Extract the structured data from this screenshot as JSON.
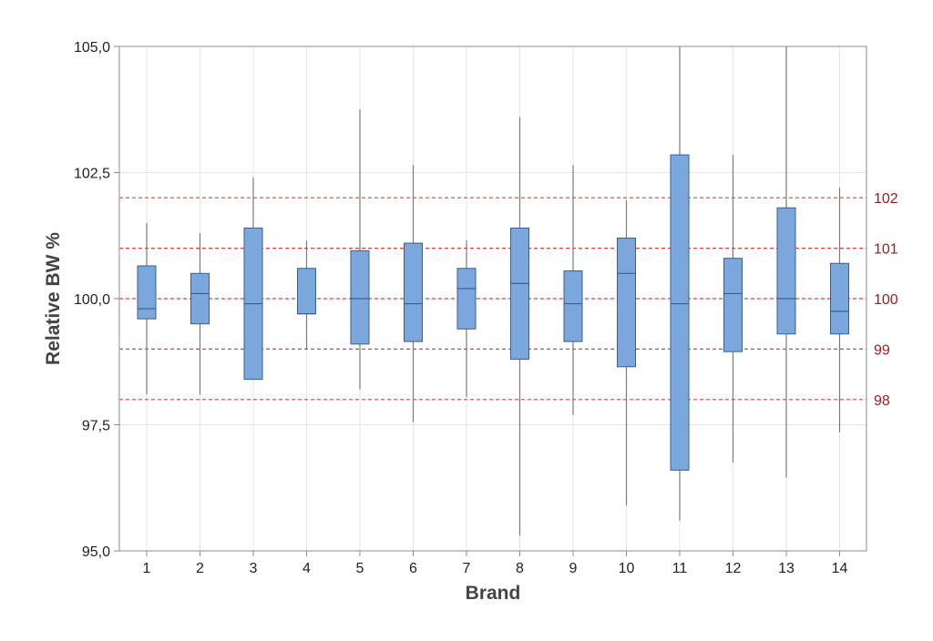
{
  "chart_data": {
    "type": "box",
    "xlabel": "Brand",
    "ylabel": "Relative BW %",
    "ylim": [
      95.0,
      105.0
    ],
    "y_ticks": [
      "95,0",
      "97,5",
      "100,0",
      "102,5",
      "105,0"
    ],
    "y_tick_values": [
      95.0,
      97.5,
      100.0,
      102.5,
      105.0
    ],
    "categories": [
      "1",
      "2",
      "3",
      "4",
      "5",
      "6",
      "7",
      "8",
      "9",
      "10",
      "11",
      "12",
      "13",
      "14"
    ],
    "boxes": [
      {
        "brand": "1",
        "min": 98.1,
        "q1": 99.6,
        "median": 99.8,
        "q3": 100.65,
        "max": 101.5
      },
      {
        "brand": "2",
        "min": 98.1,
        "q1": 99.5,
        "median": 100.1,
        "q3": 100.5,
        "max": 101.3
      },
      {
        "brand": "3",
        "min": 98.4,
        "q1": 98.4,
        "median": 99.9,
        "q3": 101.4,
        "max": 102.4
      },
      {
        "brand": "4",
        "min": 99.0,
        "q1": 99.7,
        "median": 99.7,
        "q3": 100.6,
        "max": 101.15
      },
      {
        "brand": "5",
        "min": 98.2,
        "q1": 99.1,
        "median": 100.0,
        "q3": 100.95,
        "max": 103.75
      },
      {
        "brand": "6",
        "min": 97.55,
        "q1": 99.15,
        "median": 99.9,
        "q3": 101.1,
        "max": 102.65
      },
      {
        "brand": "7",
        "min": 98.05,
        "q1": 99.4,
        "median": 100.2,
        "q3": 100.6,
        "max": 101.15
      },
      {
        "brand": "8",
        "min": 95.3,
        "q1": 98.8,
        "median": 100.3,
        "q3": 101.4,
        "max": 103.6
      },
      {
        "brand": "9",
        "min": 97.7,
        "q1": 99.15,
        "median": 99.9,
        "q3": 100.55,
        "max": 102.65
      },
      {
        "brand": "10",
        "min": 95.9,
        "q1": 98.65,
        "median": 100.5,
        "q3": 101.2,
        "max": 101.95
      },
      {
        "brand": "11",
        "min": 95.6,
        "q1": 96.6,
        "median": 99.9,
        "q3": 102.85,
        "max": 105.0
      },
      {
        "brand": "12",
        "min": 96.75,
        "q1": 98.95,
        "median": 100.1,
        "q3": 100.8,
        "max": 102.85
      },
      {
        "brand": "13",
        "min": 96.45,
        "q1": 99.3,
        "median": 100.0,
        "q3": 101.8,
        "max": 105.0
      },
      {
        "brand": "14",
        "min": 97.35,
        "q1": 99.3,
        "median": 99.75,
        "q3": 100.7,
        "max": 102.2
      }
    ],
    "reference_lines": [
      {
        "value": 102,
        "label": "102"
      },
      {
        "value": 101,
        "label": "101"
      },
      {
        "value": 100,
        "label": "100"
      },
      {
        "value": 99,
        "label": "99"
      },
      {
        "value": 98,
        "label": "98"
      }
    ],
    "grid": true,
    "colors": {
      "box_fill": "#7ba7dc",
      "box_stroke": "#3a5f8f",
      "whisker": "#7a7a7a",
      "reference_line": "#e0413a",
      "reference_label": "#9b1b1b",
      "grid": "#e6e6e6",
      "axis": "#8c8c8c"
    }
  }
}
